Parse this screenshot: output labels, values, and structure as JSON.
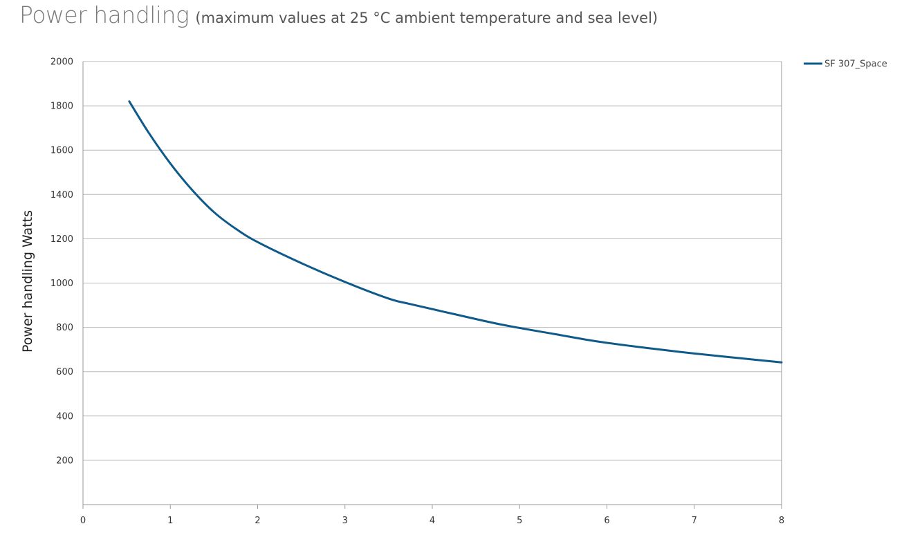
{
  "title": {
    "main": "Power handling",
    "subtitle": "(maximum values at 25 °C ambient temperature and sea level)"
  },
  "colors": {
    "series": "#0e5a8a",
    "grid": "#b8b8b8",
    "axis": "#9a9a9a"
  },
  "chart_data": {
    "type": "line",
    "title": "Power handling",
    "subtitle": "(maximum values at 25 °C ambient temperature and sea level)",
    "xlabel": "",
    "ylabel": "Power handling Watts",
    "xlim": [
      0,
      8
    ],
    "ylim": [
      0,
      2000
    ],
    "x_ticks": [
      "0",
      "1",
      "2",
      "3",
      "4",
      "5",
      "6",
      "7",
      "8"
    ],
    "y_ticks": [
      "200",
      "400",
      "600",
      "800",
      "1000",
      "1200",
      "1400",
      "1600",
      "1800",
      "2000"
    ],
    "grid": "horizontal",
    "legend_position": "top-right",
    "series": [
      {
        "name": "SF 307_Space",
        "x": [
          0.53,
          0.75,
          1.0,
          1.25,
          1.5,
          1.75,
          2.0,
          2.5,
          3.0,
          3.5,
          3.75,
          4.25,
          4.8,
          5.4,
          5.9,
          6.5,
          7.0,
          7.5,
          8.0
        ],
        "y": [
          1820,
          1680,
          1540,
          1420,
          1320,
          1245,
          1185,
          1090,
          1005,
          930,
          905,
          860,
          812,
          770,
          736,
          705,
          682,
          662,
          642
        ]
      }
    ]
  }
}
